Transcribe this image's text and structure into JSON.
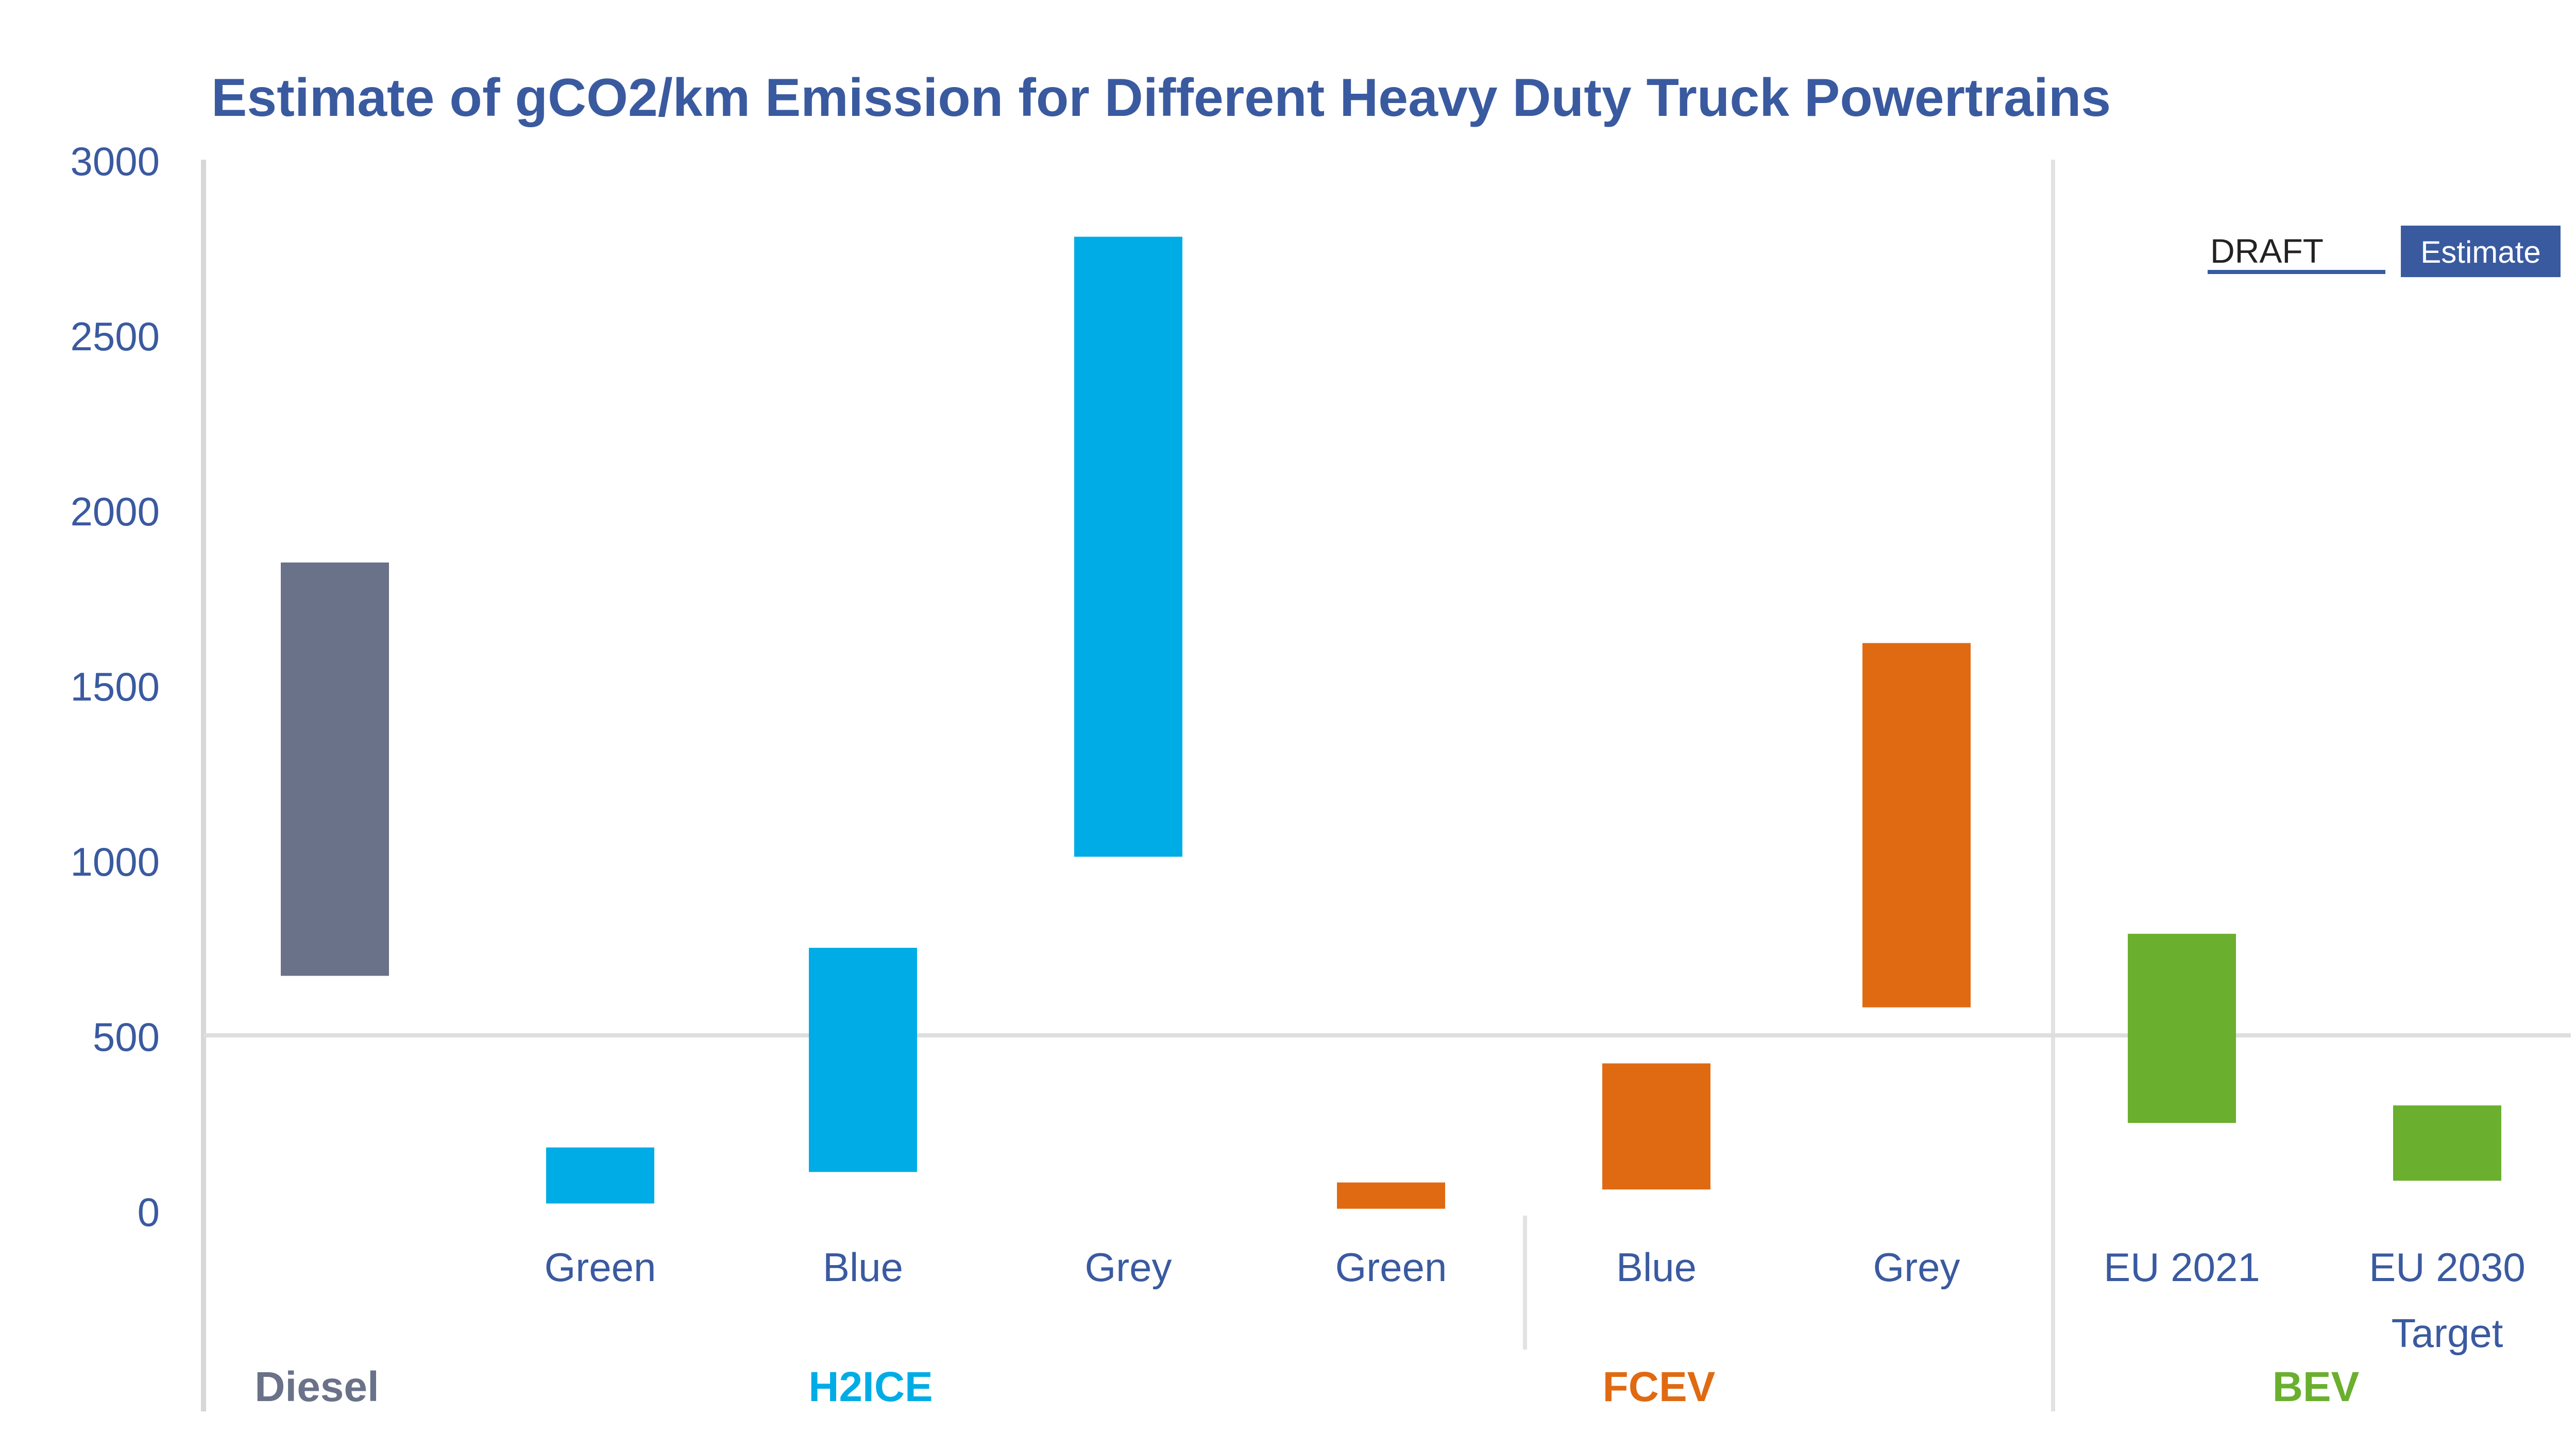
{
  "chart_data": {
    "type": "bar",
    "subtype": "floating-range",
    "title": "Estimate of gCO2/km Emission for Different Heavy Duty Truck Powertrains",
    "xlabel": "",
    "ylabel": "",
    "ylim": [
      0,
      3000
    ],
    "yticks": [
      "0",
      "500",
      "1000",
      "1500",
      "2000",
      "2500",
      "3000"
    ],
    "reference_line": 500,
    "legend": {
      "placement": "top-right",
      "items": [
        {
          "label": "DRAFT",
          "style": "outlined"
        },
        {
          "label": "Estimate",
          "style": "filled"
        }
      ]
    },
    "groups": [
      {
        "name": "Diesel",
        "color": "#6a7289"
      },
      {
        "name": "H2ICE",
        "color": "#00ace6"
      },
      {
        "name": "FCEV",
        "color": "#e06a12"
      },
      {
        "name": "BEV",
        "color": "#6aaf2e"
      }
    ],
    "bars": [
      {
        "label": "",
        "group": "Diesel",
        "low": 670,
        "high": 1850,
        "color": "#6a7289"
      },
      {
        "label": "Green",
        "group": "H2ICE",
        "low": 20,
        "high": 180,
        "color": "#00ace6"
      },
      {
        "label": "Blue",
        "group": "H2ICE",
        "low": 110,
        "high": 750,
        "color": "#00ace6"
      },
      {
        "label": "Grey",
        "group": "H2ICE",
        "low": 1010,
        "high": 2780,
        "color": "#00ace6"
      },
      {
        "label": "Green",
        "group": "FCEV",
        "low": 5,
        "high": 80,
        "color": "#e06a12"
      },
      {
        "label": "Blue",
        "group": "FCEV",
        "low": 60,
        "high": 420,
        "color": "#e06a12"
      },
      {
        "label": "Grey",
        "group": "FCEV",
        "low": 580,
        "high": 1620,
        "color": "#e06a12"
      },
      {
        "label": "EU 2021",
        "group": "BEV",
        "low": 250,
        "high": 790,
        "color": "#6aaf2e"
      },
      {
        "label": "EU 2030 Target",
        "group": "BEV",
        "low": 85,
        "high": 300,
        "color": "#6aaf2e"
      }
    ]
  }
}
